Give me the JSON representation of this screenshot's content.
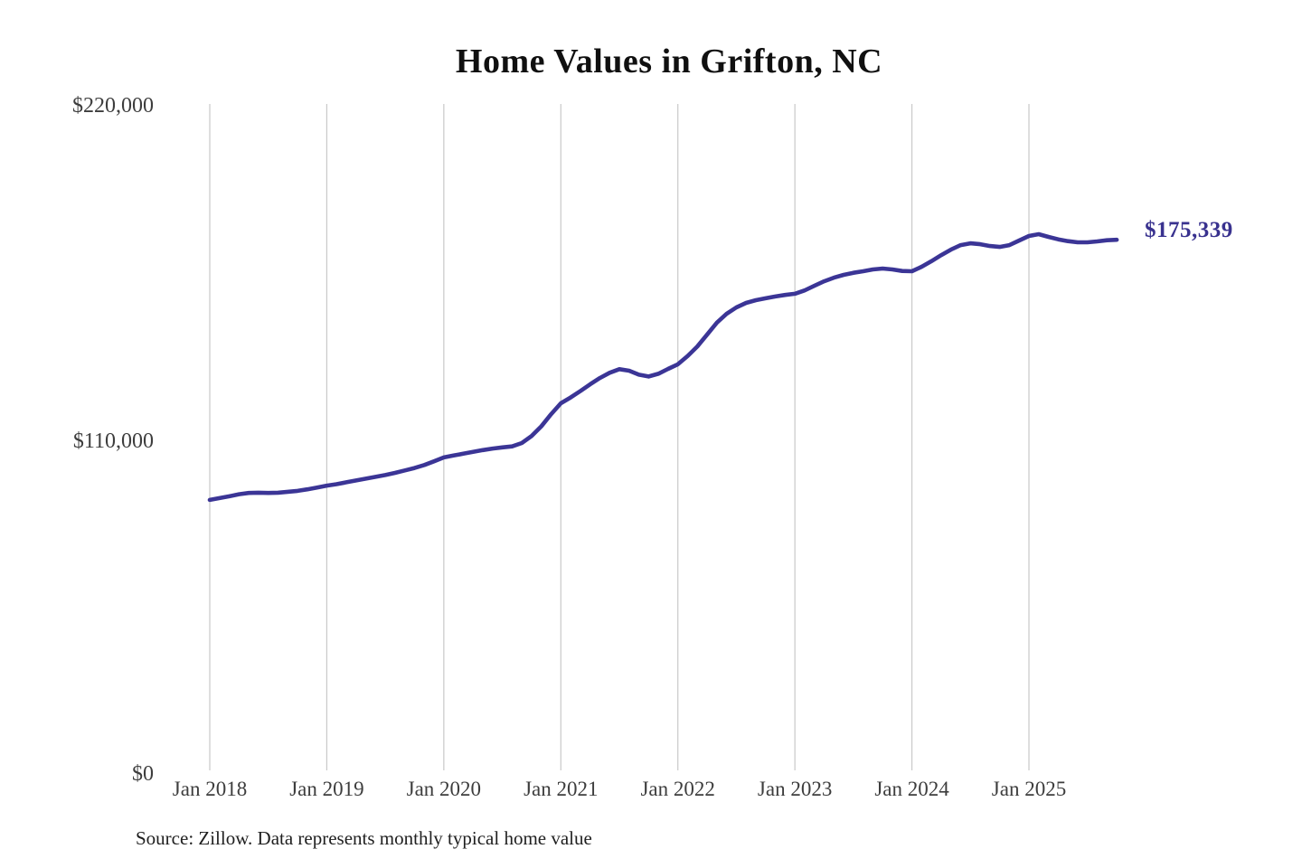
{
  "title": "Home Values in Grifton, NC",
  "source_note": "Source: Zillow. Data represents monthly typical home value",
  "final_value_label": "$175,339",
  "colors": {
    "line": "#3b3596",
    "final_label": "#39328f",
    "grid": "#c9c9c9",
    "axis_text": "#3d3d3d",
    "title_text": "#101010",
    "background": "#ffffff"
  },
  "chart_data": {
    "type": "line",
    "title": "Home Values in Grifton, NC",
    "xlabel": "",
    "ylabel": "",
    "ylim": [
      0,
      220000
    ],
    "y_tick_labels": [
      "$220,000",
      "$110,000",
      "$0"
    ],
    "y_tick_values": [
      220000,
      110000,
      0
    ],
    "x_tick_labels": [
      "Jan 2018",
      "Jan 2019",
      "Jan 2020",
      "Jan 2021",
      "Jan 2022",
      "Jan 2023",
      "Jan 2024",
      "Jan 2025"
    ],
    "grid": "vertical-gridlines-only",
    "legend": "none",
    "final_value": 175339,
    "series": [
      {
        "name": "Monthly typical home value",
        "x_start": "2018-01",
        "x_end": "2025-10",
        "x_step_months": 1,
        "values": [
          89800,
          90400,
          91000,
          91700,
          92100,
          92200,
          92100,
          92200,
          92500,
          92800,
          93300,
          93900,
          94500,
          95000,
          95600,
          96200,
          96800,
          97400,
          98000,
          98700,
          99500,
          100300,
          101300,
          102500,
          103800,
          104400,
          105000,
          105600,
          106200,
          106700,
          107100,
          107400,
          108500,
          110800,
          114000,
          118000,
          121600,
          123500,
          125600,
          127800,
          129900,
          131600,
          132800,
          132300,
          131000,
          130400,
          131300,
          132900,
          134400,
          137100,
          140300,
          144200,
          148100,
          151000,
          153100,
          154600,
          155500,
          156100,
          156700,
          157200,
          157600,
          158700,
          160200,
          161700,
          162900,
          163800,
          164500,
          165000,
          165600,
          165900,
          165600,
          165100,
          165000,
          166500,
          168300,
          170300,
          172100,
          173600,
          174200,
          173900,
          173300,
          173000,
          173600,
          175100,
          176600,
          177200,
          176300,
          175500,
          174900,
          174500,
          174500,
          174800,
          175200,
          175339
        ]
      }
    ]
  }
}
